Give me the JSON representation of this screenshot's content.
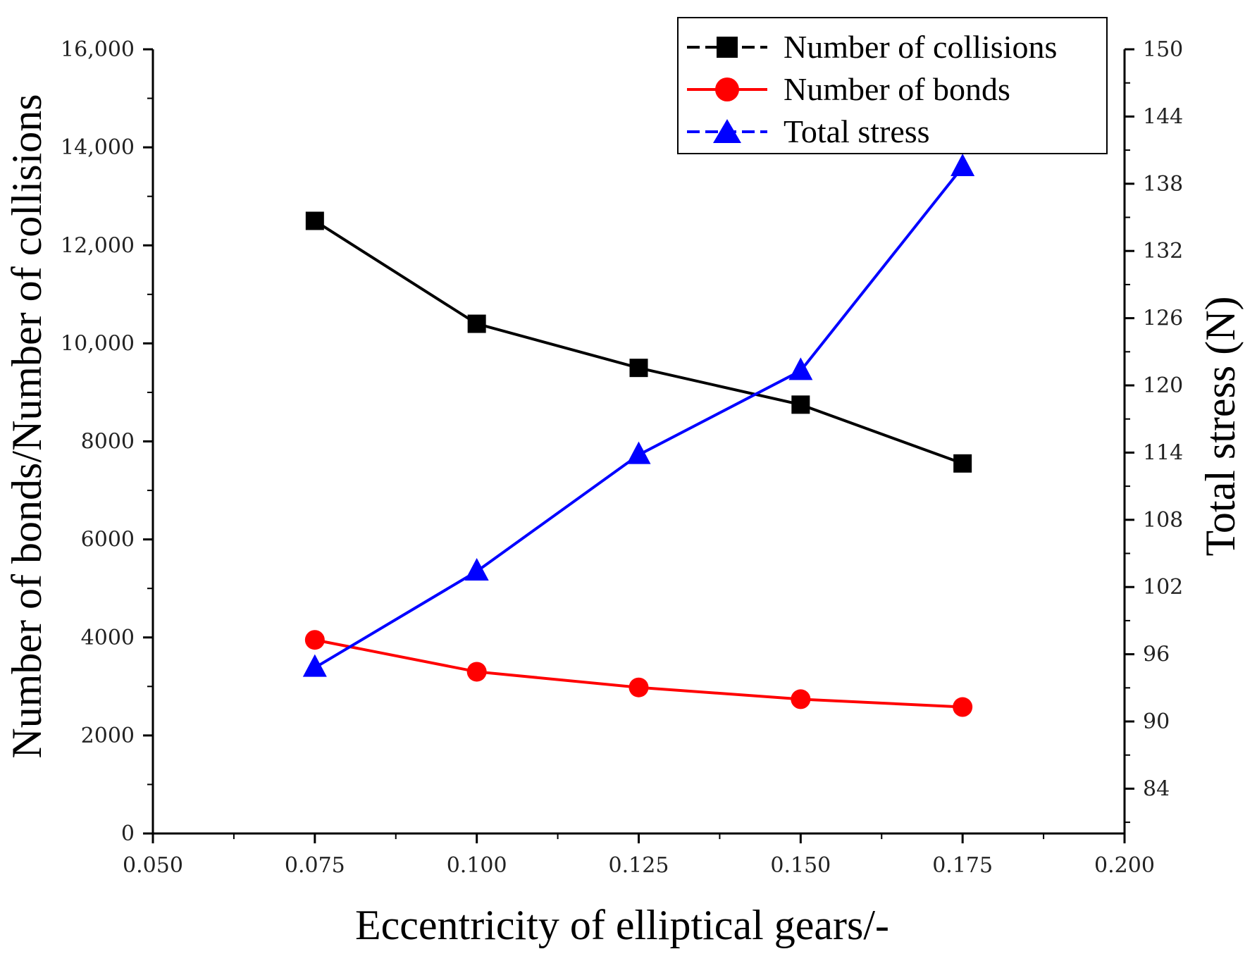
{
  "chart_data": {
    "type": "line",
    "x": [
      0.075,
      0.1,
      0.125,
      0.15,
      0.175
    ],
    "xlabel": "Eccentricity of elliptical gears/-",
    "xlim": [
      0.05,
      0.2
    ],
    "xticks": [
      0.05,
      0.075,
      0.1,
      0.125,
      0.15,
      0.175,
      0.2
    ],
    "xtick_labels": [
      "0.050",
      "0.075",
      "0.100",
      "0.125",
      "0.150",
      "0.175",
      "0.200"
    ],
    "y_left": {
      "label": "Number of bonds/Number of collisions",
      "lim": [
        0,
        16000
      ],
      "ticks": [
        0,
        2000,
        4000,
        6000,
        8000,
        10000,
        12000,
        14000,
        16000
      ],
      "tick_labels": [
        "0",
        "2000",
        "4000",
        "6000",
        "8000",
        "10,000",
        "12,000",
        "14,000",
        "16,000"
      ]
    },
    "y_right": {
      "label": "Total stress (N)",
      "lim": [
        80,
        150
      ],
      "ticks": [
        84,
        90,
        96,
        102,
        108,
        114,
        120,
        126,
        132,
        138,
        144,
        150
      ],
      "tick_labels": [
        "84",
        "90",
        "96",
        "102",
        "108",
        "114",
        "120",
        "126",
        "132",
        "138",
        "144",
        "150"
      ]
    },
    "series": [
      {
        "name": "Number of collisions",
        "axis": "left",
        "color": "#000000",
        "marker": "square",
        "values": [
          12500,
          10400,
          9500,
          8750,
          7550
        ]
      },
      {
        "name": "Number of bonds",
        "axis": "left",
        "color": "#ff0000",
        "marker": "circle",
        "values": [
          3950,
          3300,
          2980,
          2740,
          2580
        ]
      },
      {
        "name": "Total stress",
        "axis": "right",
        "color": "#0000ff",
        "marker": "triangle",
        "values": [
          94.8,
          103.4,
          113.8,
          121.3,
          139.5
        ]
      }
    ],
    "legend": {
      "position": "top-right"
    }
  }
}
